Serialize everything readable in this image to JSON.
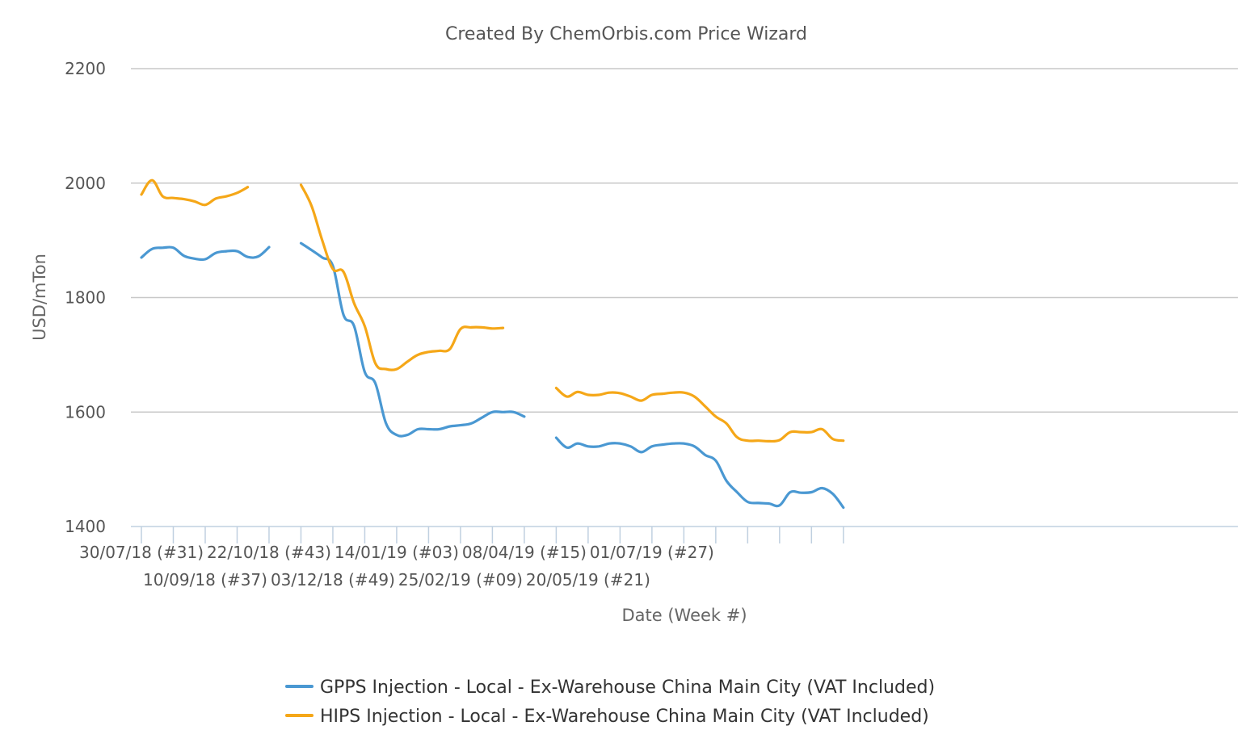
{
  "chart_data": {
    "type": "line",
    "title": "Created By ChemOrbis.com Price Wizard",
    "xlabel": "Date (Week #)",
    "ylabel": "USD/mTon",
    "ylim": [
      1400,
      2200
    ],
    "yticks": [
      1400,
      1600,
      1800,
      2000,
      2200
    ],
    "grid": true,
    "legend_position": "bottom",
    "x_start": "30/07/18",
    "x_step": "1 week",
    "x_tick_labels": [
      "30/07/18 (#31)",
      "10/09/18 (#37)",
      "22/10/18 (#43)",
      "03/12/18 (#49)",
      "14/01/19 (#03)",
      "25/02/19 (#09)",
      "08/04/19 (#15)",
      "20/05/19 (#21)",
      "01/07/19 (#27)"
    ],
    "series": [
      {
        "name": "GPPS Injection - Local - Ex-Warehouse China Main City (VAT Included)",
        "color": "#4a98d2",
        "values": [
          1870,
          1885,
          1887,
          1887,
          1873,
          1868,
          1867,
          1878,
          1881,
          1881,
          1871,
          1872,
          1888,
          null,
          null,
          1895,
          1883,
          1870,
          1855,
          1770,
          1750,
          1670,
          1650,
          1580,
          1560,
          1560,
          1570,
          1570,
          1570,
          1575,
          1577,
          1580,
          1590,
          1600,
          1600,
          1600,
          1592,
          null,
          null,
          1555,
          1538,
          1545,
          1540,
          1540,
          1545,
          1545,
          1540,
          1530,
          1540,
          1543,
          1545,
          1545,
          1540,
          1525,
          1515,
          1480,
          1460,
          1443,
          1441,
          1440,
          1437,
          1460,
          1459,
          1460,
          1467,
          1457,
          1433
        ]
      },
      {
        "name": "HIPS Injection - Local - Ex-Warehouse China Main City (VAT Included)",
        "color": "#f5a718",
        "values": [
          1980,
          2005,
          1977,
          1974,
          1972,
          1968,
          1962,
          1973,
          1977,
          1983,
          1993,
          null,
          null,
          null,
          null,
          1997,
          1960,
          1900,
          1850,
          1845,
          1790,
          1750,
          1685,
          1675,
          1675,
          1688,
          1700,
          1705,
          1707,
          1710,
          1745,
          1748,
          1748,
          1746,
          1747,
          null,
          null,
          null,
          null,
          1642,
          1627,
          1635,
          1630,
          1630,
          1634,
          1633,
          1627,
          1620,
          1630,
          1632,
          1634,
          1634,
          1627,
          1610,
          1592,
          1580,
          1556,
          1550,
          1550,
          1549,
          1551,
          1565,
          1565,
          1565,
          1570,
          1553,
          1550
        ]
      }
    ]
  }
}
